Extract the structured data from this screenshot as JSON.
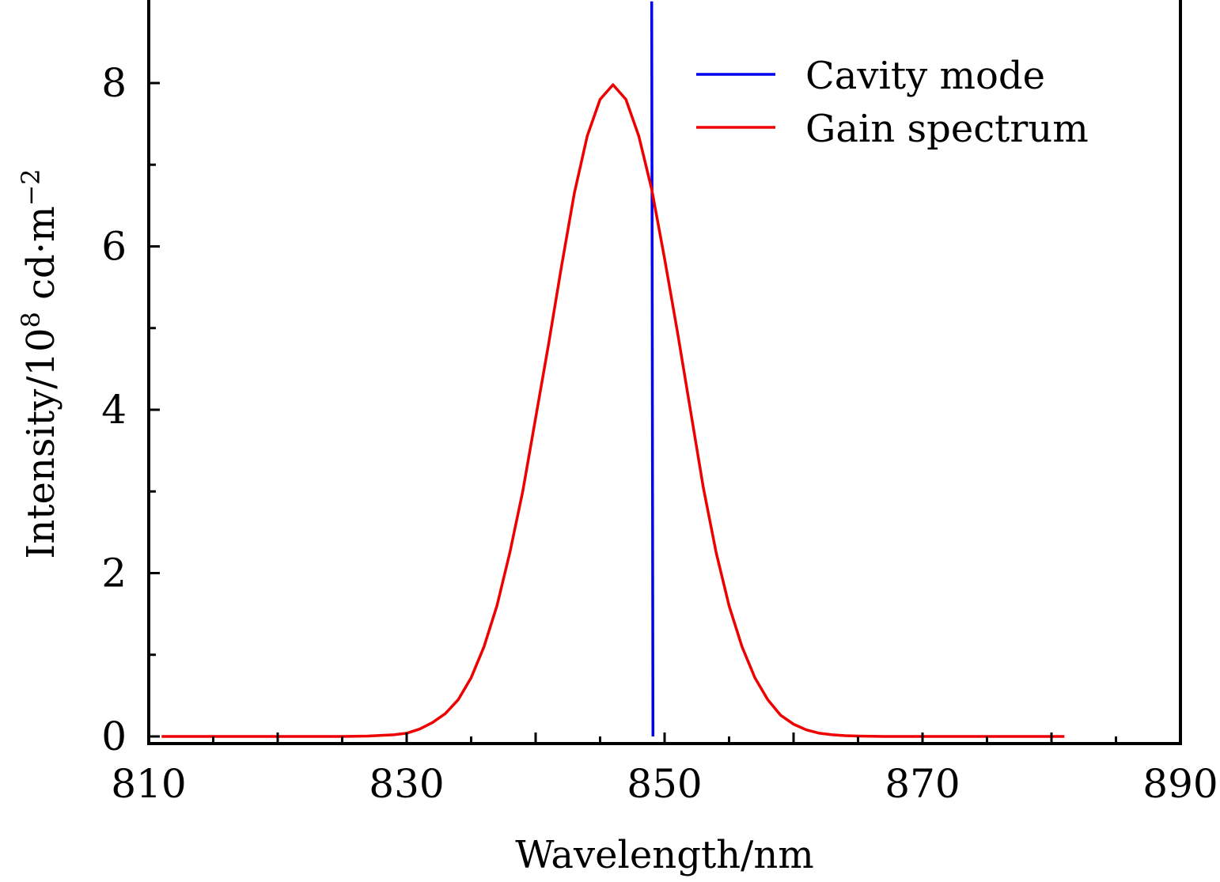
{
  "chart_data": {
    "type": "line",
    "title": "",
    "xlabel": "Wavelength/nm",
    "ylabel": {
      "prefix": "Intensity/10",
      "exponent": "8",
      "unit": " cd·m",
      "unit_exponent": "−2"
    },
    "xlim": [
      810,
      890
    ],
    "ylim": [
      0,
      9
    ],
    "xticks": [
      810,
      830,
      850,
      870,
      890
    ],
    "xtick_labels": [
      "810",
      "830",
      "850",
      "870",
      "890"
    ],
    "yticks": [
      0,
      2,
      4,
      6,
      8
    ],
    "ytick_labels": [
      "0",
      "2",
      "4",
      "6",
      "8"
    ],
    "grid": false,
    "legend_position": "top-right",
    "series": [
      {
        "name": "Cavity mode",
        "color": "#0000ee",
        "x": [
          849.0,
          849.1
        ],
        "y": [
          9.0,
          0.0
        ]
      },
      {
        "name": "Gain spectrum",
        "color": "#ee0000",
        "x": [
          811,
          813,
          815,
          817,
          819,
          821,
          823,
          825,
          827,
          829,
          830,
          831,
          832,
          833,
          834,
          835,
          836,
          837,
          838,
          839,
          840,
          841,
          842,
          843,
          844,
          845,
          846,
          847,
          848,
          849,
          850,
          851,
          852,
          853,
          854,
          855,
          856,
          857,
          858,
          859,
          860,
          861,
          862,
          863,
          864,
          865,
          867,
          869,
          871,
          873,
          875,
          877,
          879,
          881
        ],
        "y": [
          0,
          0,
          0,
          0,
          0,
          0,
          0,
          0,
          0.005,
          0.02,
          0.04,
          0.09,
          0.17,
          0.28,
          0.45,
          0.72,
          1.1,
          1.6,
          2.25,
          3.0,
          3.9,
          4.8,
          5.75,
          6.65,
          7.35,
          7.8,
          7.98,
          7.8,
          7.35,
          6.7,
          5.85,
          4.95,
          4.0,
          3.05,
          2.25,
          1.6,
          1.1,
          0.72,
          0.45,
          0.26,
          0.15,
          0.08,
          0.04,
          0.02,
          0.01,
          0.005,
          0,
          0,
          0,
          0,
          0,
          0,
          0,
          0
        ]
      }
    ]
  }
}
